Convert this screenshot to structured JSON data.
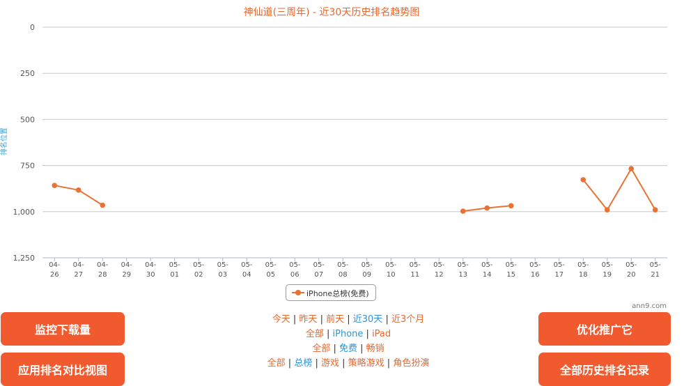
{
  "colors": {
    "series": "#ea7134",
    "title": "#e8672c",
    "axis_label": "#3aa0d8",
    "link": "#e8672c",
    "link_active": "#2e93d6",
    "button": "#f05a2e"
  },
  "credit": "ann9.com",
  "chart_data": {
    "type": "line",
    "title": "神仙道(三周年) - 近30天历史排名趋势图",
    "ylabel": "排名位置",
    "xlabel": "",
    "y_reversed": true,
    "ylim": [
      0,
      1250
    ],
    "yticks": [
      "0",
      "250",
      "500",
      "750",
      "1,000",
      "1,250"
    ],
    "categories": [
      "04-26",
      "04-27",
      "04-28",
      "04-29",
      "04-30",
      "05-01",
      "05-02",
      "05-03",
      "05-04",
      "05-05",
      "05-06",
      "05-07",
      "05-08",
      "05-09",
      "05-10",
      "05-11",
      "05-12",
      "05-13",
      "05-14",
      "05-15",
      "05-16",
      "05-17",
      "05-18",
      "05-19",
      "05-20",
      "05-21"
    ],
    "tick_labels": [
      [
        "04-",
        "26"
      ],
      [
        "04-",
        "27"
      ],
      [
        "04-",
        "28"
      ],
      [
        "04-",
        "29"
      ],
      [
        "04-",
        "30"
      ],
      [
        "05-",
        "01"
      ],
      [
        "05-",
        "02"
      ],
      [
        "05-",
        "03"
      ],
      [
        "05-",
        "04"
      ],
      [
        "05-",
        "05"
      ],
      [
        "05-",
        "06"
      ],
      [
        "05-",
        "07"
      ],
      [
        "05-",
        "08"
      ],
      [
        "05-",
        "09"
      ],
      [
        "05-",
        "10"
      ],
      [
        "05-",
        "11"
      ],
      [
        "05-",
        "12"
      ],
      [
        "05-",
        "13"
      ],
      [
        "05-",
        "14"
      ],
      [
        "05-",
        "15"
      ],
      [
        "05-",
        "16"
      ],
      [
        "05-",
        "17"
      ],
      [
        "05-",
        "18"
      ],
      [
        "05-",
        "19"
      ],
      [
        "05-",
        "20"
      ],
      [
        "05-",
        "21"
      ]
    ],
    "grid": true,
    "legend_position": "bottom-center",
    "series": [
      {
        "name": "iPhone总榜(免费)",
        "values": [
          858,
          883,
          965,
          null,
          null,
          null,
          null,
          null,
          null,
          null,
          null,
          null,
          null,
          null,
          null,
          null,
          null,
          997,
          980,
          968,
          null,
          null,
          827,
          990,
          767,
          990
        ]
      }
    ]
  },
  "buttons": {
    "monitor": "监控下载量",
    "compare": "应用排名对比视图",
    "promote": "优化推广它",
    "history": "全部历史排名记录"
  },
  "range_links": [
    {
      "label": "今天",
      "active": false
    },
    {
      "label": "昨天",
      "active": false
    },
    {
      "label": "前天",
      "active": false
    },
    {
      "label": "近30天",
      "active": true
    },
    {
      "label": "近3个月",
      "active": false
    }
  ],
  "device_links": [
    {
      "label": "全部",
      "active": false
    },
    {
      "label": "iPhone",
      "active": true
    },
    {
      "label": "iPad",
      "active": false
    }
  ],
  "price_links": [
    {
      "label": "全部",
      "active": false
    },
    {
      "label": "免费",
      "active": true
    },
    {
      "label": "畅销",
      "active": false
    }
  ],
  "category_links": [
    {
      "label": "全部",
      "active": false
    },
    {
      "label": "总榜",
      "active": true
    },
    {
      "label": "游戏",
      "active": false
    },
    {
      "label": "策略游戏",
      "active": false
    },
    {
      "label": "角色扮演",
      "active": false
    }
  ]
}
